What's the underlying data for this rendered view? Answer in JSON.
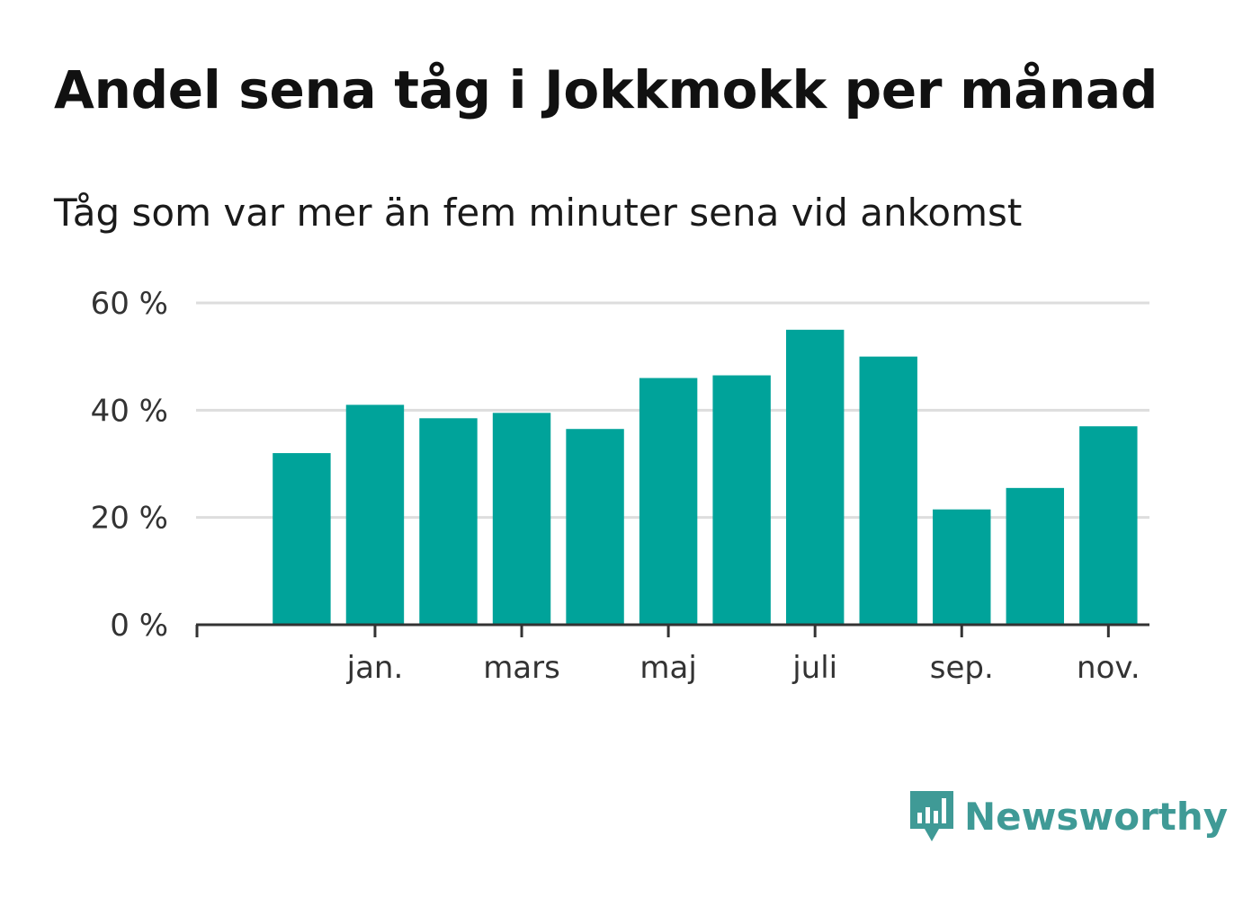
{
  "title": "Andel sena tåg i Jokkmokk per månad",
  "subtitle": "Tåg som var mer än fem minuter sena vid ankomst",
  "brand": {
    "name": "Newsworthy",
    "color": "#3f9a96",
    "icon": "newsworthy-logo-icon"
  },
  "colors": {
    "bar": "#00a39a",
    "grid": "#dddddd",
    "axis": "#333333"
  },
  "chart_data": {
    "type": "bar",
    "x_tick_labels": [
      "jan.",
      "mars",
      "maj",
      "juli",
      "sep.",
      "nov."
    ],
    "y_ticks": [
      "0 %",
      "20 %",
      "40 %",
      "60 %"
    ],
    "ylim": [
      0,
      60
    ],
    "grid": true,
    "values": [
      32,
      41,
      38.5,
      39.5,
      36.5,
      46,
      46.5,
      55,
      50,
      21.5,
      25.5,
      37
    ]
  }
}
